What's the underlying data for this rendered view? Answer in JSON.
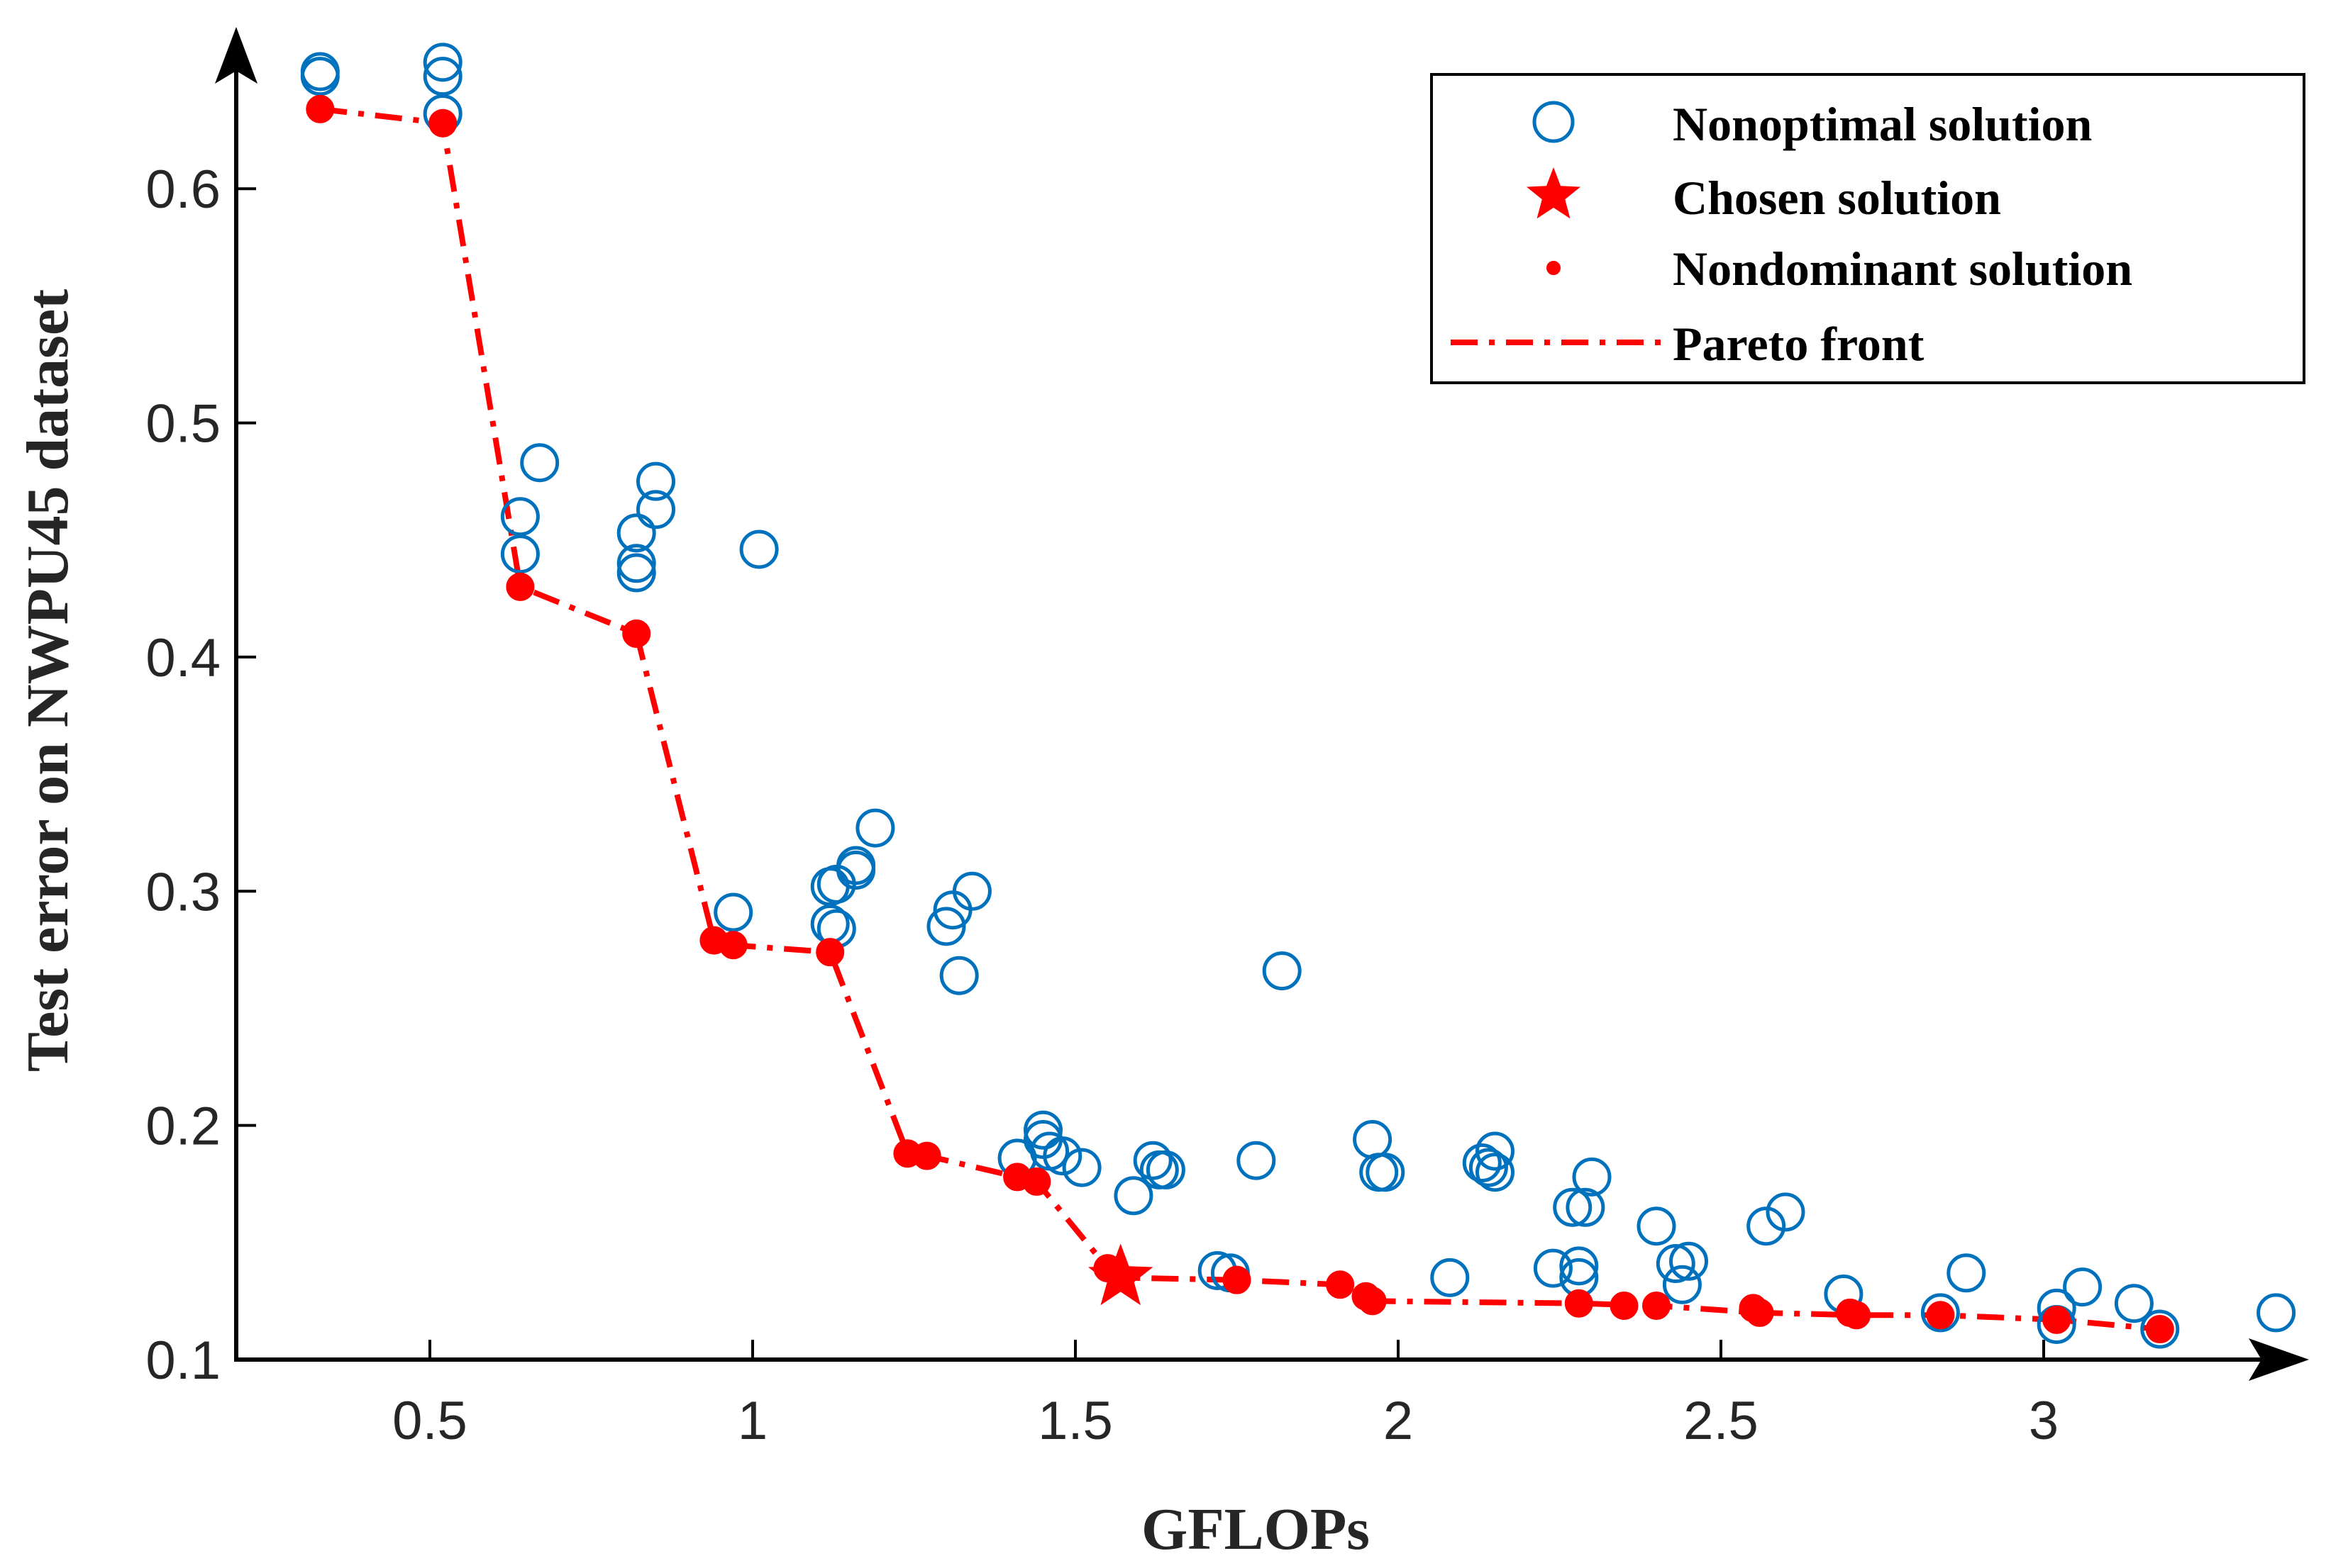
{
  "chart_data": {
    "type": "scatter",
    "title": "",
    "xlabel": "GFLOPs",
    "ylabel": "Test error on NWPU45 dataset",
    "xlim": [
      0.2,
      3.4
    ],
    "ylim": [
      0.1,
      0.66
    ],
    "xticks": [
      0.5,
      1,
      1.5,
      2,
      2.5,
      3
    ],
    "xtick_labels": [
      "0.5",
      "1",
      "1.5",
      "2",
      "2.5",
      "3"
    ],
    "yticks": [
      0.1,
      0.2,
      0.3,
      0.4,
      0.5,
      0.6
    ],
    "ytick_labels": [
      "0.1",
      "0.2",
      "0.3",
      "0.4",
      "0.5",
      "0.6"
    ],
    "legend_position": "top-right",
    "legend": [
      {
        "key": "nonoptimal",
        "label": "Nonoptimal solution"
      },
      {
        "key": "chosen",
        "label": "Chosen solution"
      },
      {
        "key": "nondominant",
        "label": "Nondominant solution"
      },
      {
        "key": "front",
        "label": "Pareto front"
      }
    ],
    "colors": {
      "nonoptimal": "#0072BD",
      "nondominant": "#FF0000",
      "axis": "#000000",
      "text": "#262626"
    },
    "series": [
      {
        "name": "Nonoptimal solution",
        "marker": "open-circle",
        "points": [
          [
            0.33,
            0.648
          ],
          [
            0.33,
            0.65
          ],
          [
            0.52,
            0.654
          ],
          [
            0.52,
            0.648
          ],
          [
            0.52,
            0.632
          ],
          [
            0.64,
            0.46
          ],
          [
            0.64,
            0.444
          ],
          [
            0.67,
            0.483
          ],
          [
            0.82,
            0.453
          ],
          [
            0.82,
            0.44
          ],
          [
            0.82,
            0.436
          ],
          [
            0.85,
            0.475
          ],
          [
            0.85,
            0.463
          ],
          [
            0.97,
            0.291
          ],
          [
            1.01,
            0.446
          ],
          [
            1.12,
            0.302
          ],
          [
            1.12,
            0.286
          ],
          [
            1.13,
            0.303
          ],
          [
            1.13,
            0.284
          ],
          [
            1.16,
            0.309
          ],
          [
            1.16,
            0.311
          ],
          [
            1.19,
            0.327
          ],
          [
            1.3,
            0.285
          ],
          [
            1.31,
            0.292
          ],
          [
            1.32,
            0.264
          ],
          [
            1.34,
            0.3
          ],
          [
            1.41,
            0.186
          ],
          [
            1.45,
            0.198
          ],
          [
            1.45,
            0.194
          ],
          [
            1.46,
            0.189
          ],
          [
            1.48,
            0.187
          ],
          [
            1.51,
            0.182
          ],
          [
            1.59,
            0.17
          ],
          [
            1.62,
            0.185
          ],
          [
            1.63,
            0.181
          ],
          [
            1.64,
            0.181
          ],
          [
            1.72,
            0.138
          ],
          [
            1.74,
            0.137
          ],
          [
            1.78,
            0.185
          ],
          [
            1.82,
            0.266
          ],
          [
            1.96,
            0.194
          ],
          [
            1.97,
            0.18
          ],
          [
            1.98,
            0.18
          ],
          [
            2.08,
            0.135
          ],
          [
            2.13,
            0.184
          ],
          [
            2.14,
            0.182
          ],
          [
            2.15,
            0.189
          ],
          [
            2.15,
            0.18
          ],
          [
            2.24,
            0.139
          ],
          [
            2.27,
            0.165
          ],
          [
            2.28,
            0.14
          ],
          [
            2.28,
            0.135
          ],
          [
            2.29,
            0.165
          ],
          [
            2.3,
            0.178
          ],
          [
            2.4,
            0.157
          ],
          [
            2.43,
            0.141
          ],
          [
            2.44,
            0.132
          ],
          [
            2.45,
            0.142
          ],
          [
            2.57,
            0.157
          ],
          [
            2.6,
            0.163
          ],
          [
            2.69,
            0.128
          ],
          [
            2.84,
            0.12
          ],
          [
            2.88,
            0.137
          ],
          [
            3.02,
            0.122
          ],
          [
            3.02,
            0.115
          ],
          [
            3.06,
            0.131
          ],
          [
            3.14,
            0.124
          ],
          [
            3.18,
            0.113
          ],
          [
            3.36,
            0.12
          ]
        ]
      },
      {
        "name": "Nondominant solution",
        "marker": "filled-dot",
        "points": [
          [
            0.33,
            0.634
          ],
          [
            0.52,
            0.628
          ],
          [
            0.64,
            0.43
          ],
          [
            0.82,
            0.41
          ],
          [
            0.94,
            0.279
          ],
          [
            0.97,
            0.277
          ],
          [
            1.12,
            0.274
          ],
          [
            1.24,
            0.188
          ],
          [
            1.27,
            0.187
          ],
          [
            1.41,
            0.178
          ],
          [
            1.44,
            0.176
          ],
          [
            1.55,
            0.139
          ],
          [
            1.75,
            0.134
          ],
          [
            1.91,
            0.132
          ],
          [
            1.95,
            0.127
          ],
          [
            1.96,
            0.125
          ],
          [
            2.28,
            0.124
          ],
          [
            2.35,
            0.123
          ],
          [
            2.4,
            0.123
          ],
          [
            2.55,
            0.122
          ],
          [
            2.56,
            0.12
          ],
          [
            2.7,
            0.12
          ],
          [
            2.71,
            0.119
          ],
          [
            2.84,
            0.119
          ],
          [
            3.02,
            0.117
          ],
          [
            3.18,
            0.113
          ]
        ]
      },
      {
        "name": "Pareto front",
        "marker": "dash-dot-line",
        "points": [
          [
            0.33,
            0.634
          ],
          [
            0.52,
            0.628
          ],
          [
            0.64,
            0.43
          ],
          [
            0.82,
            0.41
          ],
          [
            0.94,
            0.279
          ],
          [
            0.97,
            0.277
          ],
          [
            1.12,
            0.274
          ],
          [
            1.24,
            0.188
          ],
          [
            1.27,
            0.187
          ],
          [
            1.41,
            0.178
          ],
          [
            1.44,
            0.176
          ],
          [
            1.55,
            0.139
          ],
          [
            1.57,
            0.135
          ],
          [
            1.75,
            0.134
          ],
          [
            1.91,
            0.132
          ],
          [
            1.96,
            0.125
          ],
          [
            2.28,
            0.124
          ],
          [
            2.4,
            0.123
          ],
          [
            2.56,
            0.12
          ],
          [
            2.71,
            0.119
          ],
          [
            2.84,
            0.119
          ],
          [
            3.02,
            0.117
          ],
          [
            3.18,
            0.113
          ]
        ]
      },
      {
        "name": "Chosen solution",
        "marker": "star",
        "points": [
          [
            1.57,
            0.135
          ]
        ]
      }
    ]
  }
}
